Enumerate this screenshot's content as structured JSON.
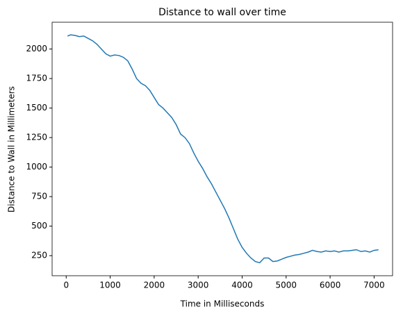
{
  "chart_data": {
    "type": "line",
    "title": "Distance to wall over time",
    "x_label": "Time in Milliseconds",
    "y_label": "Distance to Wall in Millimeters",
    "x": [
      30,
      100,
      200,
      300,
      400,
      500,
      600,
      700,
      800,
      900,
      1000,
      1100,
      1200,
      1300,
      1400,
      1500,
      1600,
      1700,
      1800,
      1900,
      2000,
      2100,
      2200,
      2300,
      2400,
      2500,
      2600,
      2700,
      2800,
      2900,
      3000,
      3100,
      3200,
      3300,
      3400,
      3500,
      3600,
      3700,
      3800,
      3900,
      4000,
      4100,
      4200,
      4300,
      4400,
      4500,
      4600,
      4700,
      4800,
      4900,
      5000,
      5100,
      5200,
      5300,
      5400,
      5500,
      5600,
      5700,
      5800,
      5900,
      6000,
      6100,
      6200,
      6300,
      6400,
      6500,
      6600,
      6700,
      6800,
      6900,
      7000,
      7100
    ],
    "series": [
      {
        "name": "distance",
        "color": "#1f77b4",
        "values": [
          2110,
          2120,
          2115,
          2105,
          2110,
          2090,
          2070,
          2040,
          2000,
          1960,
          1940,
          1950,
          1945,
          1930,
          1900,
          1830,
          1750,
          1710,
          1690,
          1650,
          1590,
          1530,
          1500,
          1460,
          1420,
          1360,
          1280,
          1250,
          1200,
          1120,
          1050,
          990,
          920,
          860,
          790,
          720,
          650,
          570,
          480,
          390,
          320,
          270,
          230,
          200,
          190,
          230,
          230,
          200,
          205,
          220,
          235,
          245,
          255,
          260,
          270,
          280,
          295,
          285,
          280,
          290,
          285,
          290,
          280,
          290,
          290,
          295,
          300,
          285,
          290,
          280,
          295,
          300
        ]
      }
    ],
    "xlim": [
      -320,
      7420
    ],
    "ylim": [
      80,
      2227
    ],
    "xticks": [
      0,
      1000,
      2000,
      3000,
      4000,
      5000,
      6000,
      7000
    ],
    "yticks": [
      250,
      500,
      750,
      1000,
      1250,
      1500,
      1750,
      2000
    ]
  }
}
